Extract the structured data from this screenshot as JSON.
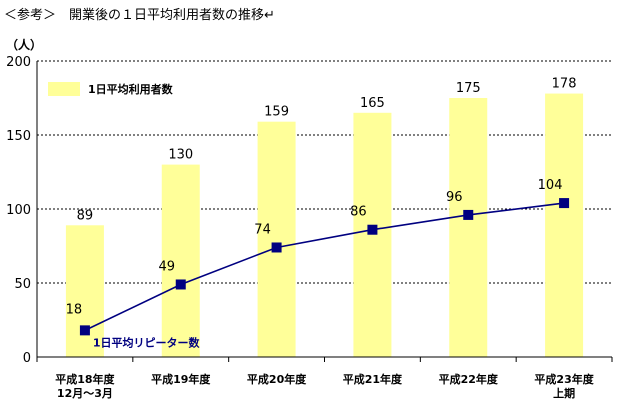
{
  "title": "＜参考＞　開業後の１日平均利用者数の推移↵",
  "y_unit": "（人）",
  "chart_data": {
    "type": "bar",
    "categories": [
      "平成18年度\n12月～3月",
      "平成19年度",
      "平成20年度",
      "平成21年度",
      "平成22年度",
      "平成23年度\n上期"
    ],
    "ylim": [
      0,
      200
    ],
    "yticks": [
      0,
      50,
      100,
      150,
      200
    ],
    "grid": true,
    "legend_position": "top-left",
    "series": [
      {
        "name": "1日平均利用者数",
        "type": "bar",
        "color": "#ffff99",
        "values": [
          89,
          130,
          159,
          165,
          175,
          178
        ]
      },
      {
        "name": "1日平均リピーター数",
        "type": "line",
        "color": "#000080",
        "values": [
          18,
          49,
          74,
          86,
          96,
          104
        ]
      }
    ]
  }
}
